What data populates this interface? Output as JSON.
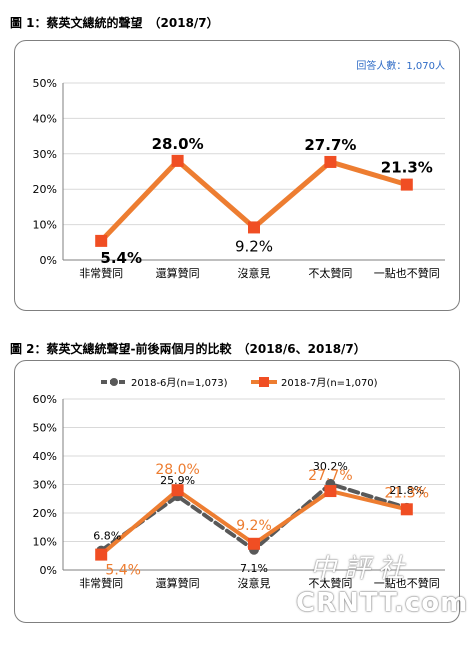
{
  "figure1": {
    "title": "圖 1：蔡英文總統的聲望　（2018/7）",
    "note": "回答人數：1,070人"
  },
  "figure2": {
    "title": "圖 2：蔡英文總統聲望-前後兩個月的比較　（2018/6、2018/7）"
  },
  "colors": {
    "orange": "#ed7d31",
    "marker_orange": "#f04e23",
    "dark_gray": "#595959",
    "note_blue": "#2e6bc6",
    "grid": "#d9d9d9"
  },
  "watermark": {
    "line1": "中評社",
    "line2": "CRNTT.com"
  },
  "chart_data": [
    {
      "type": "line",
      "categories": [
        "非常贊同",
        "還算贊同",
        "沒意見",
        "不太贊同",
        "一點也不贊同"
      ],
      "series": [
        {
          "values": [
            5.4,
            28.0,
            9.2,
            27.7,
            21.3
          ],
          "color": "#ed7d31",
          "marker": "square"
        }
      ],
      "data_labels": [
        "5.4%",
        "28.0%",
        "9.2%",
        "27.7%",
        "21.3%"
      ],
      "y_ticks": [
        "0%",
        "10%",
        "20%",
        "30%",
        "40%",
        "50%"
      ],
      "ylim": [
        0,
        50
      ],
      "grid": true,
      "legend": "none"
    },
    {
      "type": "line",
      "categories": [
        "非常贊同",
        "還算贊同",
        "沒意見",
        "不太贊同",
        "一點也不贊同"
      ],
      "series": [
        {
          "name": "2018-6月(n=1,073)",
          "values": [
            6.8,
            25.9,
            7.1,
            30.2,
            21.8
          ],
          "color": "#595959",
          "style": "dashed",
          "marker": "circle",
          "data_labels": [
            "6.8%",
            "25.9%",
            "7.1%",
            "30.2%",
            "21.8%"
          ]
        },
        {
          "name": "2018-7月(n=1,070)",
          "values": [
            5.4,
            28.0,
            9.2,
            27.7,
            21.3
          ],
          "color": "#ed7d31",
          "style": "solid",
          "marker": "square",
          "data_labels": [
            "5.4%",
            "28.0%",
            "9.2%",
            "27.7%",
            "21.3%"
          ]
        }
      ],
      "y_ticks": [
        "0%",
        "10%",
        "20%",
        "30%",
        "40%",
        "50%",
        "60%"
      ],
      "ylim": [
        0,
        60
      ],
      "grid": true,
      "legend": "top"
    }
  ]
}
